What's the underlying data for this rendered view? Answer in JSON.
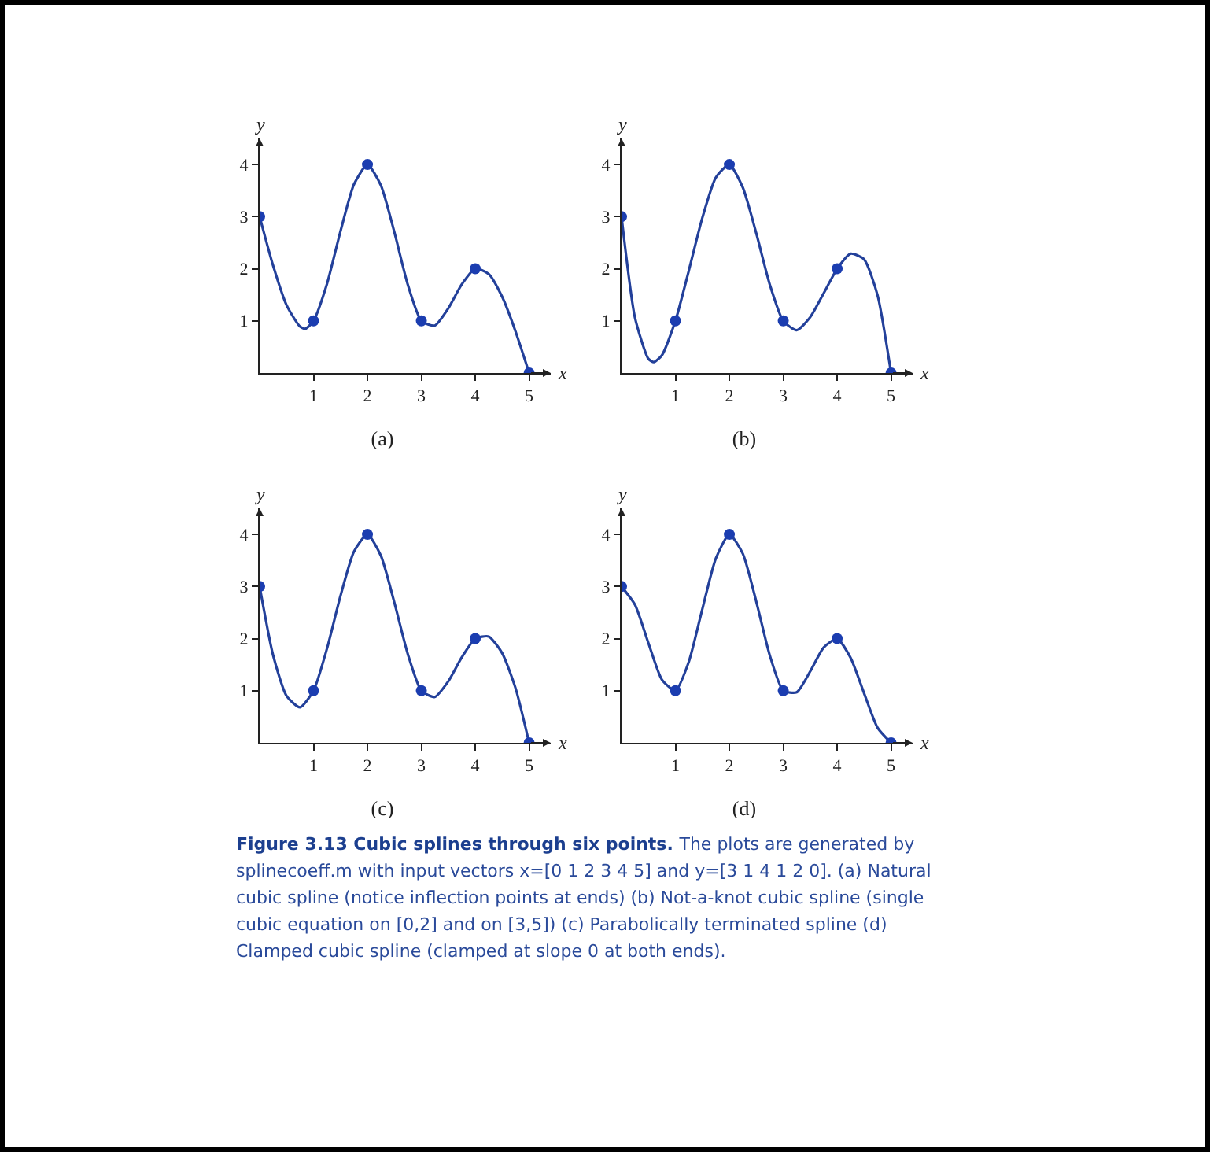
{
  "chart_data": [
    {
      "type": "line",
      "title": "(a)",
      "xlabel": "x",
      "ylabel": "y",
      "xlim": [
        0,
        5.4
      ],
      "ylim": [
        0,
        4.5
      ],
      "xticks": [
        1,
        2,
        3,
        4,
        5
      ],
      "yticks": [
        1,
        2,
        3,
        4
      ],
      "series": [
        {
          "color": "#23409a",
          "marker": "none",
          "x": [
            0,
            0.25,
            0.5,
            0.75,
            0.85,
            1,
            1.25,
            1.5,
            1.75,
            2,
            2.25,
            2.5,
            2.75,
            3,
            3.25,
            3.5,
            3.75,
            4,
            4.25,
            4.5,
            4.75,
            5
          ],
          "values": [
            3,
            2.06,
            1.3,
            0.89,
            0.85,
            1,
            1.71,
            2.72,
            3.62,
            4,
            3.6,
            2.7,
            1.69,
            1,
            0.91,
            1.24,
            1.7,
            2,
            1.9,
            1.46,
            0.79,
            0
          ]
        },
        {
          "type": "scatter",
          "color": "#1b3db0",
          "marker": "circle",
          "x": [
            0,
            1,
            2,
            3,
            4,
            5
          ],
          "values": [
            3,
            1,
            4,
            1,
            2,
            0
          ]
        }
      ]
    },
    {
      "type": "line",
      "title": "(b)",
      "xlabel": "x",
      "ylabel": "y",
      "xlim": [
        0,
        5.4
      ],
      "ylim": [
        0,
        4.5
      ],
      "xticks": [
        1,
        2,
        3,
        4,
        5
      ],
      "yticks": [
        1,
        2,
        3,
        4
      ],
      "series": [
        {
          "color": "#23409a",
          "marker": "none",
          "x": [
            0,
            0.25,
            0.5,
            0.6,
            0.75,
            1,
            1.25,
            1.5,
            1.75,
            2,
            2.25,
            2.5,
            2.75,
            3,
            3.25,
            3.5,
            3.75,
            4,
            4.25,
            4.5,
            4.75,
            5
          ],
          "values": [
            3,
            1.06,
            0.27,
            0.21,
            0.34,
            1,
            1.97,
            2.98,
            3.75,
            4,
            3.56,
            2.68,
            1.7,
            1,
            0.82,
            1.07,
            1.53,
            2,
            2.29,
            2.18,
            1.49,
            0
          ]
        },
        {
          "type": "scatter",
          "color": "#1b3db0",
          "marker": "circle",
          "x": [
            0,
            1,
            2,
            3,
            4,
            5
          ],
          "values": [
            3,
            1,
            4,
            1,
            2,
            0
          ]
        }
      ]
    },
    {
      "type": "line",
      "title": "(c)",
      "xlabel": "x",
      "ylabel": "y",
      "xlim": [
        0,
        5.4
      ],
      "ylim": [
        0,
        4.5
      ],
      "xticks": [
        1,
        2,
        3,
        4,
        5
      ],
      "yticks": [
        1,
        2,
        3,
        4
      ],
      "series": [
        {
          "color": "#23409a",
          "marker": "none",
          "x": [
            0,
            0.25,
            0.5,
            0.75,
            1,
            1.25,
            1.5,
            1.75,
            2,
            2.25,
            2.5,
            2.75,
            3,
            3.25,
            3.5,
            3.75,
            4,
            4.25,
            4.5,
            4.75,
            5
          ],
          "values": [
            3,
            1.68,
            0.9,
            0.68,
            1,
            1.81,
            2.82,
            3.67,
            4,
            3.59,
            2.69,
            1.7,
            1,
            0.88,
            1.18,
            1.64,
            2,
            2.04,
            1.72,
            1.04,
            0
          ]
        },
        {
          "type": "scatter",
          "color": "#1b3db0",
          "marker": "circle",
          "x": [
            0,
            1,
            2,
            3,
            4,
            5
          ],
          "values": [
            3,
            1,
            4,
            1,
            2,
            0
          ]
        }
      ]
    },
    {
      "type": "line",
      "title": "(d)",
      "xlabel": "x",
      "ylabel": "y",
      "xlim": [
        0,
        5.4
      ],
      "ylim": [
        0,
        4.5
      ],
      "xticks": [
        1,
        2,
        3,
        4,
        5
      ],
      "yticks": [
        1,
        2,
        3,
        4
      ],
      "series": [
        {
          "color": "#23409a",
          "marker": "none",
          "x": [
            0,
            0.25,
            0.5,
            0.75,
            1,
            1.25,
            1.5,
            1.75,
            2,
            2.25,
            2.5,
            2.75,
            3,
            3.25,
            3.5,
            3.75,
            4,
            4.25,
            4.5,
            4.75,
            5
          ],
          "values": [
            3,
            2.65,
            1.91,
            1.21,
            1,
            1.56,
            2.57,
            3.54,
            4,
            3.63,
            2.71,
            1.68,
            1,
            0.97,
            1.37,
            1.83,
            2,
            1.63,
            0.95,
            0.29,
            0
          ]
        },
        {
          "type": "scatter",
          "color": "#1b3db0",
          "marker": "circle",
          "x": [
            0,
            1,
            2,
            3,
            4,
            5
          ],
          "values": [
            3,
            1,
            4,
            1,
            2,
            0
          ]
        }
      ],
      "annotations": [
        "Figure 3.13 Cubic splines through six points.",
        "The plots are generated by splinecoeff.m with input vectors x=[0 1 2 3 4 5] and y=[3 1 4 1 2 0]. (a) Natural cubic spline (notice inflection points at ends) (b) Not-a-knot cubic spline (single cubic equation on [0,2] and on [3,5]) (c) Parabolically terminated spline (d) Clamped cubic spline (clamped at slope 0 at both ends)."
      ]
    }
  ]
}
